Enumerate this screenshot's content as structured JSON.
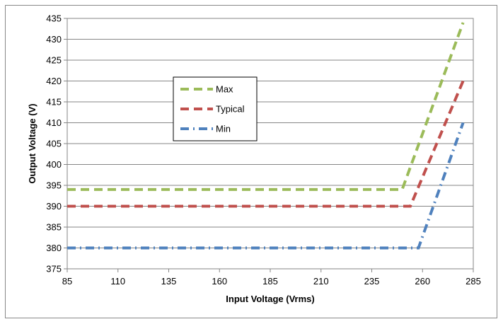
{
  "chart_data": {
    "type": "line",
    "title": "",
    "xlabel": "Input Voltage (Vrms)",
    "ylabel": "Output Voltage (V)",
    "xlim": [
      85,
      285
    ],
    "ylim": [
      375,
      435
    ],
    "xticks": [
      85,
      110,
      135,
      160,
      185,
      210,
      235,
      260,
      285
    ],
    "yticks": [
      375,
      380,
      385,
      390,
      395,
      400,
      405,
      410,
      415,
      420,
      425,
      430,
      435
    ],
    "grid": true,
    "legend_position": "left-center",
    "series": [
      {
        "name": "Max",
        "color": "#9BBB59",
        "dash": "dash",
        "x": [
          85,
          250,
          280
        ],
        "y": [
          394,
          394,
          434
        ]
      },
      {
        "name": "Typical",
        "color": "#C0504D",
        "dash": "dash",
        "x": [
          85,
          254,
          280
        ],
        "y": [
          390,
          390,
          420
        ]
      },
      {
        "name": "Min",
        "color": "#4F81BD",
        "dash": "dashdot",
        "x": [
          85,
          258,
          280
        ],
        "y": [
          380,
          380,
          410
        ]
      }
    ]
  }
}
